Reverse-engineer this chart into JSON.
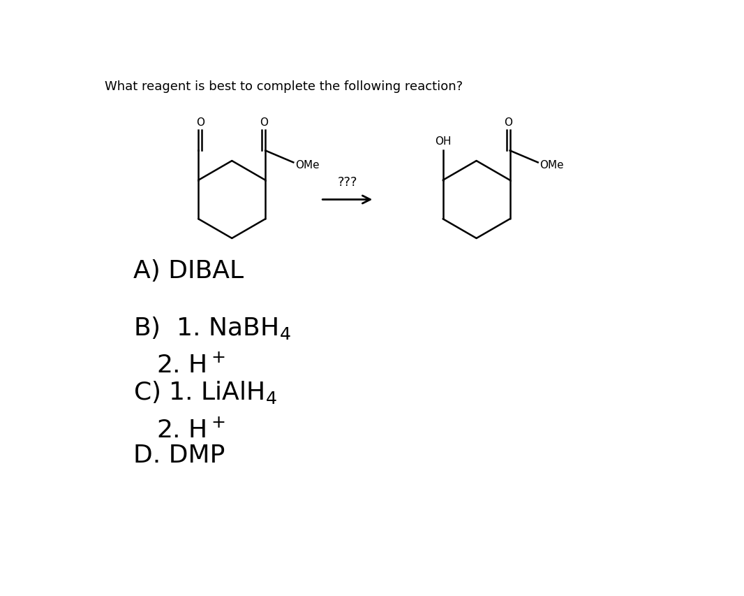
{
  "title": "What reagent is best to complete the following reaction?",
  "title_fontsize": 13,
  "background_color": "#ffffff",
  "text_color": "#000000",
  "arrow_label": "???",
  "label_OMe": "OMe",
  "label_OH": "OH",
  "label_O": "O",
  "answer_A": "A) DIBAL",
  "answer_B1": "B)  1. NaBH",
  "answer_B1_sub": "4",
  "answer_B2": "2. H",
  "answer_B2_sup": "+",
  "answer_C1": "C) 1. LiAlH",
  "answer_C1_sub": "4",
  "answer_C2": "2. H",
  "answer_C2_sup": "+",
  "answer_D": "D. DMP",
  "answer_fontsize": 26
}
